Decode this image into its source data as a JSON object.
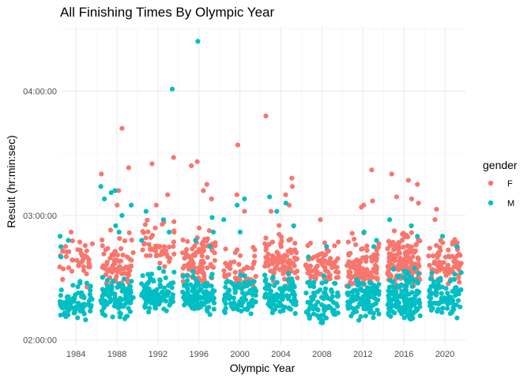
{
  "chart_data": {
    "type": "scatter",
    "title": "All Finishing Times By Olympic Year",
    "xlabel": "Olympic Year",
    "ylabel": "Result (hr:min:sec)",
    "x_ticks": [
      1984,
      1988,
      1992,
      1996,
      2000,
      2004,
      2008,
      2012,
      2016,
      2020
    ],
    "y_ticks": [
      "02:00:00",
      "03:00:00",
      "04:00:00"
    ],
    "xlim": [
      1982.6,
      2022
    ],
    "ylim_seconds": [
      7050,
      16260
    ],
    "grid": true,
    "jitter": true,
    "legend": {
      "title": "gender",
      "position": "right"
    },
    "series": [
      {
        "name": "F",
        "color": "#F8766D",
        "groups": [
          {
            "year": 1984,
            "count": 40,
            "range": [
              "02:25:00",
              "02:52:00"
            ],
            "center": "02:38:00",
            "outliers": [
              "02:52:00"
            ]
          },
          {
            "year": 1988,
            "count": 75,
            "range": [
              "02:25:00",
              "02:55:00"
            ],
            "center": "02:35:00",
            "outliers": [
              "03:42:00",
              "03:23:00",
              "03:20:00",
              "03:12:00",
              "03:05:00"
            ]
          },
          {
            "year": 1992,
            "count": 50,
            "range": [
              "02:32:00",
              "03:05:00"
            ],
            "center": "02:45:00",
            "outliers": [
              "03:28:00",
              "03:25:00",
              "03:10:00",
              "03:05:00"
            ]
          },
          {
            "year": 1996,
            "count": 90,
            "range": [
              "02:26:00",
              "02:55:00"
            ],
            "center": "02:36:00",
            "outliers": [
              "03:26:00",
              "03:24:00",
              "03:15:00",
              "03:12:00",
              "03:08:00"
            ]
          },
          {
            "year": 2000,
            "count": 50,
            "range": [
              "02:23:00",
              "02:45:00"
            ],
            "center": "02:32:00",
            "outliers": [
              "03:34:00",
              "03:10:00",
              "03:02:00"
            ]
          },
          {
            "year": 2004,
            "count": 90,
            "range": [
              "02:26:00",
              "02:58:00"
            ],
            "center": "02:40:00",
            "outliers": [
              "03:48:00",
              "03:18:00",
              "03:14:00",
              "03:10:00",
              "03:05:00",
              "03:02:00"
            ]
          },
          {
            "year": 2008,
            "count": 70,
            "range": [
              "02:26:00",
              "02:50:00"
            ],
            "center": "02:36:00",
            "outliers": [
              "02:58:00"
            ]
          },
          {
            "year": 2012,
            "count": 105,
            "range": [
              "02:23:00",
              "02:52:00"
            ],
            "center": "02:33:00",
            "outliers": [
              "03:22:00",
              "03:07:00",
              "03:05:00",
              "03:04:00"
            ]
          },
          {
            "year": 2016,
            "count": 150,
            "range": [
              "02:24:00",
              "02:55:00"
            ],
            "center": "02:38:00",
            "outliers": [
              "03:20:00",
              "03:17:00",
              "03:15:00",
              "03:09:00",
              "03:08:00",
              "03:06:00"
            ]
          },
          {
            "year": 2020,
            "count": 80,
            "range": [
              "02:27:00",
              "02:52:00"
            ],
            "center": "02:36:00",
            "outliers": [
              "03:03:00",
              "02:58:00"
            ]
          }
        ]
      },
      {
        "name": "M",
        "color": "#00BFC4",
        "groups": [
          {
            "year": 1984,
            "count": 80,
            "range": [
              "02:09:00",
              "02:30:00"
            ],
            "center": "02:18:00",
            "outliers": [
              "02:50:00",
              "02:48:00",
              "02:45:00",
              "02:40:00"
            ]
          },
          {
            "year": 1988,
            "count": 100,
            "range": [
              "02:10:00",
              "02:32:00"
            ],
            "center": "02:20:00",
            "outliers": [
              "03:14:00",
              "03:12:00",
              "03:11:00",
              "03:08:00",
              "03:05:00",
              "03:00:00",
              "02:55:00",
              "02:52:00"
            ]
          },
          {
            "year": 1992,
            "count": 105,
            "range": [
              "02:12:00",
              "02:35:00"
            ],
            "center": "02:22:00",
            "outliers": [
              "04:01:00",
              "03:02:00",
              "02:58:00",
              "02:52:00",
              "02:48:00"
            ]
          },
          {
            "year": 1996,
            "count": 110,
            "range": [
              "02:12:00",
              "02:34:00"
            ],
            "center": "02:21:00",
            "outliers": [
              "04:24:00",
              "02:59:00",
              "02:52:00",
              "02:48:00",
              "02:45:00"
            ]
          },
          {
            "year": 2000,
            "count": 90,
            "range": [
              "02:11:00",
              "02:32:00"
            ],
            "center": "02:20:00",
            "outliers": [
              "03:08:00",
              "03:05:00",
              "02:58:00",
              "02:52:00"
            ]
          },
          {
            "year": 2004,
            "count": 95,
            "range": [
              "02:11:00",
              "02:33:00"
            ],
            "center": "02:21:00",
            "outliers": [
              "03:09:00",
              "03:06:00",
              "03:02:00",
              "02:55:00"
            ]
          },
          {
            "year": 2008,
            "count": 80,
            "range": [
              "02:06:00",
              "02:32:00"
            ],
            "center": "02:18:00",
            "outliers": [
              "02:45:00",
              "02:40:00"
            ]
          },
          {
            "year": 2012,
            "count": 105,
            "range": [
              "02:08:00",
              "02:33:00"
            ],
            "center": "02:19:00",
            "outliers": [
              "02:52:00",
              "02:48:00",
              "02:45:00"
            ]
          },
          {
            "year": 2016,
            "count": 155,
            "range": [
              "02:08:00",
              "02:36:00"
            ],
            "center": "02:20:00",
            "outliers": [
              "02:58:00",
              "02:55:00",
              "02:50:00"
            ]
          },
          {
            "year": 2020,
            "count": 80,
            "range": [
              "02:08:00",
              "02:34:00"
            ],
            "center": "02:20:00",
            "outliers": [
              "02:50:00",
              "02:45:00"
            ]
          }
        ]
      }
    ]
  }
}
